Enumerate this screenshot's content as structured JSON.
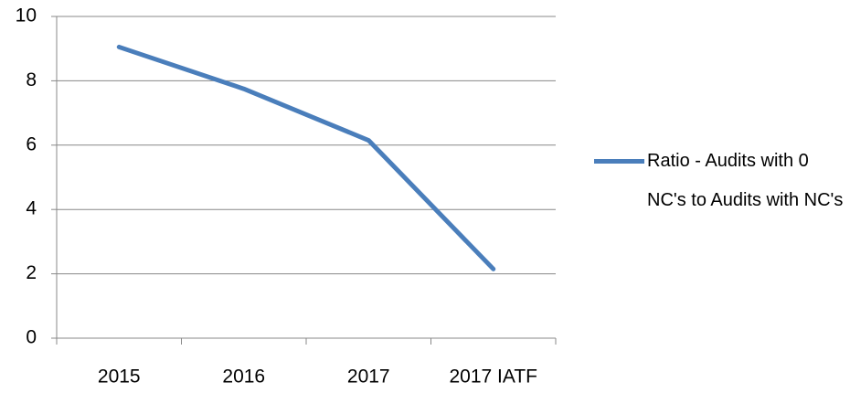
{
  "chart_data": {
    "type": "line",
    "categories": [
      "2015",
      "2016",
      "2017",
      "2017 IATF"
    ],
    "series": [
      {
        "name": "Ratio - Audits with 0 NC's to Audits with NC's",
        "color": "#4a7ebb",
        "values": [
          9.05,
          7.75,
          6.15,
          2.15
        ]
      }
    ],
    "ylim": [
      0,
      10
    ],
    "yticks": [
      0,
      2,
      4,
      6,
      8,
      10
    ],
    "grid": true,
    "legend": "right"
  }
}
